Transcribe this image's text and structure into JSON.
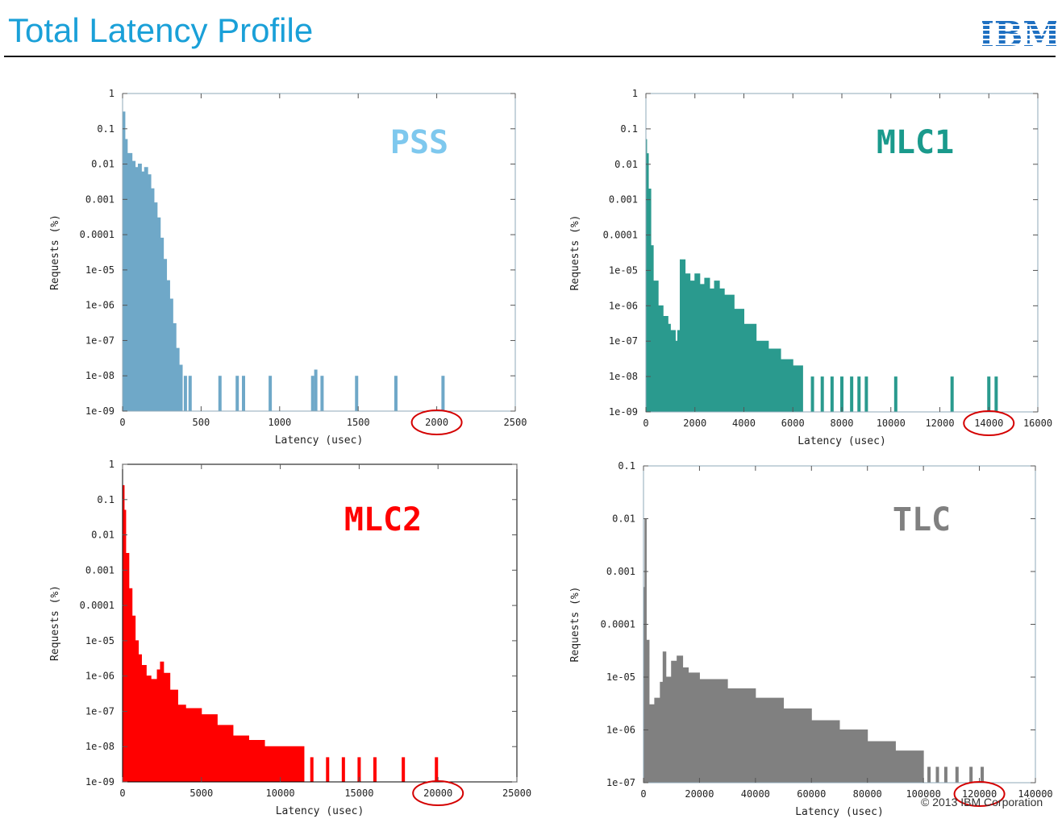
{
  "slide": {
    "title": "Total Latency Profile",
    "logo_text": "IBM",
    "footer": "© 2013 IBM Corporation"
  },
  "colors": {
    "title": "#1aa0d8",
    "PSS": "#6fa8c8",
    "MLC1": "#2a9a8e",
    "MLC2": "#ff0000",
    "TLC": "#808080",
    "circle": "#d40000"
  },
  "chart_data": [
    {
      "id": "pss",
      "type": "histogram",
      "title": "PSS",
      "xlabel": "Latency (usec)",
      "ylabel": "Requests (%)",
      "yscale": "log",
      "xlim": [
        0,
        2500
      ],
      "ylim": [
        1e-09,
        1
      ],
      "xticks": [
        0,
        500,
        1000,
        1500,
        2000,
        2500
      ],
      "yticks": [
        "1",
        "0.1",
        "0.01",
        "0.001",
        "0.0001",
        "1e-05",
        "1e-06",
        "1e-07",
        "1e-08",
        "1e-09"
      ],
      "highlighted_tick": "2000",
      "color": "#6fa8c8",
      "points": [
        [
          0,
          0.12
        ],
        [
          5,
          0.3
        ],
        [
          15,
          0.05
        ],
        [
          30,
          0.02
        ],
        [
          60,
          0.012
        ],
        [
          80,
          0.008
        ],
        [
          100,
          0.01
        ],
        [
          120,
          0.006
        ],
        [
          140,
          0.008
        ],
        [
          160,
          0.005
        ],
        [
          180,
          0.002
        ],
        [
          200,
          0.0008
        ],
        [
          220,
          0.0003
        ],
        [
          240,
          8e-05
        ],
        [
          260,
          2e-05
        ],
        [
          280,
          5e-06
        ],
        [
          300,
          1.5e-06
        ],
        [
          320,
          3e-07
        ],
        [
          340,
          6e-08
        ],
        [
          360,
          2e-08
        ],
        [
          380,
          8e-09
        ]
      ],
      "outliers": [
        [
          400,
          1e-08
        ],
        [
          430,
          1e-08
        ],
        [
          620,
          1e-08
        ],
        [
          730,
          1e-08
        ],
        [
          770,
          1e-08
        ],
        [
          940,
          1e-08
        ],
        [
          1210,
          1e-08
        ],
        [
          1230,
          1.5e-08
        ],
        [
          1270,
          1e-08
        ],
        [
          1490,
          1e-08
        ],
        [
          1740,
          1e-08
        ],
        [
          2040,
          1e-08
        ]
      ]
    },
    {
      "id": "mlc1",
      "type": "histogram",
      "title": "MLC1",
      "xlabel": "Latency (usec)",
      "ylabel": "Requests (%)",
      "yscale": "log",
      "xlim": [
        0,
        16000
      ],
      "ylim": [
        1e-09,
        1
      ],
      "xticks": [
        0,
        2000,
        4000,
        6000,
        8000,
        10000,
        12000,
        14000,
        16000
      ],
      "yticks": [
        "1",
        "0.1",
        "0.01",
        "0.001",
        "0.0001",
        "1e-05",
        "1e-06",
        "1e-07",
        "1e-08",
        "1e-09"
      ],
      "highlighted_tick": "14000",
      "color": "#2a9a8e",
      "points": [
        [
          0,
          0.05
        ],
        [
          30,
          0.02
        ],
        [
          100,
          0.002
        ],
        [
          200,
          5e-05
        ],
        [
          300,
          5e-06
        ],
        [
          500,
          1e-06
        ],
        [
          700,
          5e-07
        ],
        [
          900,
          3e-07
        ],
        [
          1000,
          2e-07
        ],
        [
          1200,
          1e-07
        ],
        [
          1300,
          2e-07
        ],
        [
          1400,
          2e-05
        ],
        [
          1600,
          8e-06
        ],
        [
          1800,
          5e-06
        ],
        [
          2000,
          8e-06
        ],
        [
          2200,
          4e-06
        ],
        [
          2400,
          6e-06
        ],
        [
          2600,
          3e-06
        ],
        [
          2800,
          5e-06
        ],
        [
          3000,
          3e-06
        ],
        [
          3200,
          2e-06
        ],
        [
          3600,
          8e-07
        ],
        [
          4000,
          3e-07
        ],
        [
          4500,
          1e-07
        ],
        [
          5000,
          6e-08
        ],
        [
          5500,
          3e-08
        ],
        [
          6000,
          2e-08
        ],
        [
          6400,
          1e-08
        ]
      ],
      "outliers": [
        [
          6800,
          1e-08
        ],
        [
          7200,
          1e-08
        ],
        [
          7600,
          1e-08
        ],
        [
          8000,
          1e-08
        ],
        [
          8400,
          1e-08
        ],
        [
          8700,
          1e-08
        ],
        [
          9000,
          1e-08
        ],
        [
          10200,
          1e-08
        ],
        [
          12500,
          1e-08
        ],
        [
          14000,
          1e-08
        ],
        [
          14300,
          1e-08
        ]
      ]
    },
    {
      "id": "mlc2",
      "type": "histogram",
      "title": "MLC2",
      "xlabel": "Latency (usec)",
      "ylabel": "Requests (%)",
      "yscale": "log",
      "xlim": [
        0,
        25000
      ],
      "ylim": [
        1e-09,
        1
      ],
      "xticks": [
        0,
        5000,
        10000,
        15000,
        20000,
        25000
      ],
      "yticks": [
        "1",
        "0.1",
        "0.01",
        "0.001",
        "0.0001",
        "1e-05",
        "1e-06",
        "1e-07",
        "1e-08",
        "1e-09"
      ],
      "highlighted_tick": "20000",
      "color": "#ff0000",
      "points": [
        [
          0,
          0.25
        ],
        [
          100,
          0.05
        ],
        [
          200,
          0.003
        ],
        [
          400,
          0.0003
        ],
        [
          600,
          5e-05
        ],
        [
          800,
          1e-05
        ],
        [
          1000,
          4e-06
        ],
        [
          1200,
          2e-06
        ],
        [
          1500,
          1e-06
        ],
        [
          1800,
          8e-07
        ],
        [
          2200,
          1.5e-06
        ],
        [
          2400,
          2.5e-06
        ],
        [
          2600,
          1.2e-06
        ],
        [
          3000,
          4e-07
        ],
        [
          3500,
          1.5e-07
        ],
        [
          4000,
          1.2e-07
        ],
        [
          5000,
          8e-08
        ],
        [
          6000,
          4e-08
        ],
        [
          7000,
          2e-08
        ],
        [
          8000,
          1.5e-08
        ],
        [
          9000,
          1e-08
        ],
        [
          11500,
          5e-09
        ]
      ],
      "outliers": [
        [
          12000,
          5e-09
        ],
        [
          13000,
          5e-09
        ],
        [
          14000,
          5e-09
        ],
        [
          15000,
          5e-09
        ],
        [
          16000,
          5e-09
        ],
        [
          17800,
          5e-09
        ],
        [
          19900,
          5e-09
        ]
      ]
    },
    {
      "id": "tlc",
      "type": "histogram",
      "title": "TLC",
      "xlabel": "Latency (usec)",
      "ylabel": "Requests (%)",
      "yscale": "log",
      "xlim": [
        0,
        140000
      ],
      "ylim": [
        1e-07,
        0.1
      ],
      "xticks": [
        0,
        20000,
        40000,
        60000,
        80000,
        100000,
        120000,
        140000
      ],
      "yticks": [
        "0.1",
        "0.01",
        "0.001",
        "0.0001",
        "1e-05",
        "1e-06",
        "1e-07"
      ],
      "highlighted_tick": "120000",
      "color": "#808080",
      "points": [
        [
          0,
          0.0005
        ],
        [
          500,
          0.01
        ],
        [
          1000,
          5e-05
        ],
        [
          2000,
          3e-06
        ],
        [
          4000,
          4e-06
        ],
        [
          6000,
          8e-06
        ],
        [
          7000,
          3e-05
        ],
        [
          8000,
          1e-05
        ],
        [
          10000,
          2e-05
        ],
        [
          12000,
          2.5e-05
        ],
        [
          14000,
          1.5e-05
        ],
        [
          16000,
          1.2e-05
        ],
        [
          20000,
          9e-06
        ],
        [
          30000,
          6e-06
        ],
        [
          40000,
          4e-06
        ],
        [
          50000,
          2.5e-06
        ],
        [
          60000,
          1.5e-06
        ],
        [
          70000,
          1e-06
        ],
        [
          80000,
          6e-07
        ],
        [
          90000,
          4e-07
        ],
        [
          100000,
          3e-07
        ]
      ],
      "outliers": [
        [
          102000,
          2e-07
        ],
        [
          105000,
          2e-07
        ],
        [
          108000,
          2e-07
        ],
        [
          112000,
          2e-07
        ],
        [
          117000,
          2e-07
        ],
        [
          121000,
          2e-07
        ]
      ]
    }
  ]
}
